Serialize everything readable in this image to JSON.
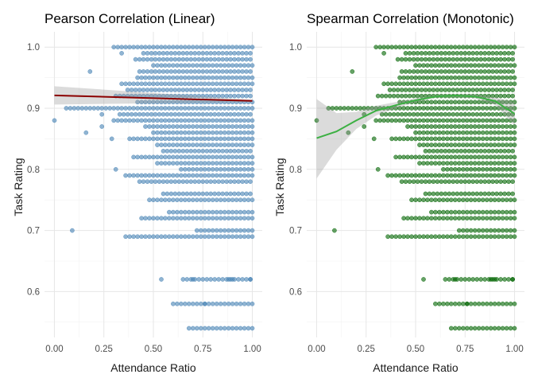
{
  "chart_data": [
    {
      "type": "scatter",
      "title": "Pearson Correlation (Linear)",
      "xlabel": "Attendance Ratio",
      "ylabel": "Task Rating",
      "xlim": [
        -0.05,
        1.05
      ],
      "ylim": [
        0.525,
        1.025
      ],
      "x_ticks": [
        0,
        0.25,
        0.5,
        0.75,
        1
      ],
      "x_tick_labels": [
        "0.00",
        "0.25",
        "0.50",
        "0.75",
        "1.00"
      ],
      "y_ticks": [
        0.6,
        0.7,
        0.8,
        0.9,
        1
      ],
      "y_tick_labels": [
        "0.6",
        "0.7",
        "0.8",
        "0.9",
        "1.0"
      ],
      "grid": true,
      "point_color": "#4682B4",
      "trend": {
        "method": "linear",
        "color": "#8B0000",
        "x": [
          0,
          1
        ],
        "y": [
          0.921,
          0.912
        ],
        "band_lower": [
          0.906,
          0.91
        ],
        "band_upper": [
          0.936,
          0.914
        ]
      },
      "ratings": [
        0.54,
        0.58,
        0.62,
        0.69,
        0.7,
        0.72,
        0.73,
        0.75,
        0.76,
        0.78,
        0.79,
        0.8,
        0.81,
        0.82,
        0.83,
        0.84,
        0.85,
        0.86,
        0.87,
        0.88,
        0.89,
        0.9,
        0.91,
        0.92,
        0.93,
        0.94,
        0.95,
        0.96,
        0.97,
        0.98,
        0.99,
        1.0
      ],
      "x_start": [
        0.68,
        0.6,
        0.65,
        0.36,
        0.72,
        0.44,
        0.58,
        0.48,
        0.55,
        0.43,
        0.36,
        0.64,
        0.52,
        0.4,
        0.55,
        0.52,
        0.38,
        0.5,
        0.46,
        0.3,
        0.33,
        0.06,
        0.42,
        0.31,
        0.37,
        0.34,
        0.42,
        0.43,
        0.5,
        0.41,
        0.45,
        0.3
      ],
      "scatter_x": [
        [
          0.0,
          0.88
        ],
        [
          0.09,
          0.7
        ],
        [
          0.16,
          0.86
        ],
        [
          0.18,
          0.96
        ],
        [
          0.24,
          0.87
        ],
        [
          0.24,
          0.89
        ],
        [
          0.29,
          0.85
        ],
        [
          0.31,
          0.8
        ],
        [
          0.34,
          0.99
        ]
      ],
      "isolated_x": [
        [
          0.54,
          0.62
        ],
        [
          0.7,
          0.62
        ],
        [
          0.76,
          0.58
        ],
        [
          0.88,
          0.62
        ],
        [
          0.9,
          0.62
        ],
        [
          0.99,
          0.62
        ]
      ]
    },
    {
      "type": "scatter",
      "title": "Spearman Correlation (Monotonic)",
      "xlabel": "Attendance Ratio",
      "ylabel": "Task Rating",
      "xlim": [
        -0.05,
        1.05
      ],
      "ylim": [
        0.525,
        1.025
      ],
      "x_ticks": [
        0,
        0.25,
        0.5,
        0.75,
        1
      ],
      "x_tick_labels": [
        "0.00",
        "0.25",
        "0.50",
        "0.75",
        "1.00"
      ],
      "y_ticks": [
        0.6,
        0.7,
        0.8,
        0.9,
        1
      ],
      "y_tick_labels": [
        "0.6",
        "0.7",
        "0.8",
        "0.9",
        "1.0"
      ],
      "grid": true,
      "point_color": "#006400",
      "trend": {
        "method": "loess",
        "color": "#3CB043",
        "x": [
          0,
          0.1,
          0.2,
          0.3,
          0.4,
          0.5,
          0.6,
          0.7,
          0.8,
          0.9,
          1.0
        ],
        "y": [
          0.851,
          0.862,
          0.88,
          0.896,
          0.905,
          0.913,
          0.919,
          0.921,
          0.919,
          0.912,
          0.891
        ],
        "band_lower": [
          0.785,
          0.832,
          0.866,
          0.888,
          0.9,
          0.91,
          0.917,
          0.919,
          0.916,
          0.906,
          0.872
        ],
        "band_upper": [
          0.915,
          0.892,
          0.894,
          0.904,
          0.91,
          0.916,
          0.921,
          0.923,
          0.922,
          0.918,
          0.91
        ]
      },
      "ratings": [
        0.54,
        0.58,
        0.62,
        0.69,
        0.7,
        0.72,
        0.73,
        0.75,
        0.76,
        0.78,
        0.79,
        0.8,
        0.81,
        0.82,
        0.83,
        0.84,
        0.85,
        0.86,
        0.87,
        0.88,
        0.89,
        0.9,
        0.91,
        0.92,
        0.93,
        0.94,
        0.95,
        0.96,
        0.97,
        0.98,
        0.99,
        1.0
      ],
      "x_start": [
        0.68,
        0.6,
        0.65,
        0.36,
        0.72,
        0.44,
        0.58,
        0.48,
        0.55,
        0.43,
        0.36,
        0.64,
        0.52,
        0.4,
        0.55,
        0.52,
        0.38,
        0.5,
        0.46,
        0.3,
        0.33,
        0.06,
        0.42,
        0.31,
        0.37,
        0.34,
        0.42,
        0.43,
        0.5,
        0.41,
        0.45,
        0.3
      ],
      "scatter_x": [
        [
          0.0,
          0.88
        ],
        [
          0.09,
          0.7
        ],
        [
          0.16,
          0.86
        ],
        [
          0.18,
          0.96
        ],
        [
          0.24,
          0.87
        ],
        [
          0.24,
          0.89
        ],
        [
          0.29,
          0.85
        ],
        [
          0.31,
          0.8
        ],
        [
          0.34,
          0.99
        ]
      ],
      "isolated_x": [
        [
          0.54,
          0.62
        ],
        [
          0.7,
          0.62
        ],
        [
          0.76,
          0.58
        ],
        [
          0.88,
          0.62
        ],
        [
          0.9,
          0.62
        ],
        [
          0.99,
          0.62
        ]
      ]
    }
  ]
}
